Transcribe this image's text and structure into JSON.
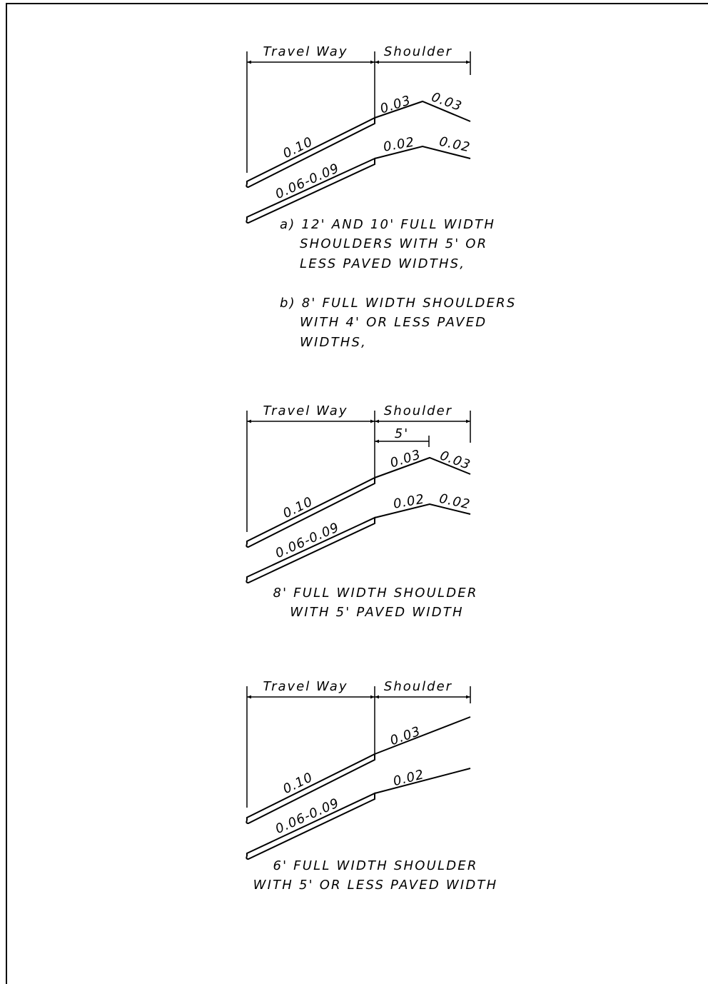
{
  "details": [
    {
      "travel_way_label": "Travel Way",
      "shoulder_label": "Shoulder",
      "slopes": {
        "travel_upper": "0.10",
        "travel_lower": "0.06-0.09",
        "shoulder_upper_in": "0.03",
        "shoulder_upper_out": "0.03",
        "shoulder_lower_in": "0.02",
        "shoulder_lower_out": "0.02"
      },
      "caption_lines": [
        "a) 12' AND 10' FULL WIDTH",
        "SHOULDERS WITH 5' OR",
        "LESS PAVED WIDTHS,",
        "b) 8' FULL WIDTH SHOULDERS",
        "WITH 4' OR LESS PAVED",
        "WIDTHS,"
      ]
    },
    {
      "travel_way_label": "Travel Way",
      "shoulder_label": "Shoulder",
      "paved_width_label": "5'",
      "slopes": {
        "travel_upper": "0.10",
        "travel_lower": "0.06-0.09",
        "shoulder_upper_in": "0.03",
        "shoulder_upper_out": "0.03",
        "shoulder_lower_in": "0.02",
        "shoulder_lower_out": "0.02"
      },
      "caption_lines": [
        "8' FULL WIDTH SHOULDER",
        "WITH 5' PAVED WIDTH"
      ]
    },
    {
      "travel_way_label": "Travel Way",
      "shoulder_label": "Shoulder",
      "slopes": {
        "travel_upper": "0.10",
        "travel_lower": "0.06-0.09",
        "shoulder_upper": "0.03",
        "shoulder_lower": "0.02"
      },
      "caption_lines": [
        "6' FULL WIDTH SHOULDER",
        "WITH 5' OR LESS PAVED WIDTH"
      ]
    }
  ]
}
